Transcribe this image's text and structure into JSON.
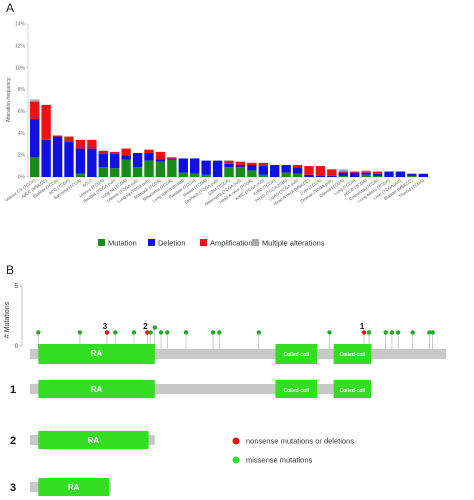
{
  "panel_a_label": "A",
  "panel_b_label": "B",
  "chart_data": [
    {
      "type": "bar",
      "stacked": true,
      "ylabel": "Alteration frequency",
      "ylim": [
        0,
        14
      ],
      "yticks": [
        "0%",
        "2%",
        "4%",
        "6%",
        "8%",
        "10%",
        "12%",
        "14%"
      ],
      "grid": false,
      "legend_position": "bottom",
      "colors": {
        "Mutation": "#1a8a1a",
        "Deletion": "#1010e0",
        "Amplification": "#ee1111",
        "Multiple alterations": "#aaaaaa"
      },
      "categories": [
        "Uterine CS (TCGA)",
        "AdCC (MSKCC)",
        "Bladder (TCGA)",
        "ACC (TCGA)",
        "Sarcoma (TCGA)",
        "SCLC",
        "Uterine (TCGA)",
        "Bladder (TCGA pub)",
        "Lung sq (TCGA)",
        "Uterine (TCGA pub)",
        "Lung sq (TCGA pub)",
        "Stomach (TCGA)",
        "Melanoma (TCGA)",
        "Lung adeno (Broad)",
        "Prostate (TCGA)",
        "Breast (TCGA)",
        "Stomach (TCGA pub)",
        "GBM (TCGA)",
        "Melanoma (TCGA pub)",
        "Head & neck (TCGA)",
        "KIRC (TCGA pub)",
        "KIRC (TCGA)",
        "PRAD (TCGA 2015)",
        "LUAD (TCGA pub)",
        "Head & neck (MSKCC)",
        "Liver (TCGA)",
        "Ovarian (TCGA pub)",
        "Glioma (TCGA)",
        "Lung (TCGA)",
        "pRCC (TCGA)",
        "Colorectal (TCGA)",
        "Lung adeno (TCGA)",
        "Liver (TCGA pub)",
        "Bladder (MSKCC)",
        "Thyroid (TCGA)"
      ],
      "series": [
        {
          "name": "Mutation",
          "values": [
            1.8,
            0,
            0,
            0,
            0.3,
            0,
            0.9,
            0.8,
            1.6,
            0.9,
            1.5,
            1.4,
            1.6,
            0.4,
            0.3,
            0.2,
            0,
            0.9,
            0.9,
            0.6,
            0.2,
            0,
            0.4,
            0.3,
            0,
            0,
            0,
            0.1,
            0,
            0.2,
            0.1,
            0,
            0,
            0.1,
            0
          ]
        },
        {
          "name": "Deletion",
          "values": [
            3.5,
            3.4,
            3.7,
            3.2,
            2.3,
            2.6,
            1.2,
            1.3,
            0.4,
            1.3,
            0.7,
            0.2,
            0.1,
            1.3,
            1.4,
            1.3,
            1.5,
            0.3,
            0.2,
            0.5,
            0.8,
            1.1,
            0.7,
            0.6,
            0.2,
            0.1,
            0.1,
            0.3,
            0.4,
            0.2,
            0.2,
            0.5,
            0.5,
            0.2,
            0.3
          ]
        },
        {
          "name": "Amplification",
          "values": [
            1.6,
            3.2,
            0.1,
            0.5,
            0.8,
            0.8,
            0.3,
            0.2,
            0.6,
            0,
            0.3,
            0.7,
            0.1,
            0,
            0,
            0,
            0,
            0.3,
            0.3,
            0.2,
            0.3,
            0,
            0,
            0.2,
            0.8,
            0.9,
            0.6,
            0.1,
            0.1,
            0.1,
            0.2,
            0,
            0,
            0,
            0
          ]
        },
        {
          "name": "Multiple alterations",
          "values": [
            0.2,
            0,
            0,
            0,
            0,
            0,
            0,
            0,
            0,
            0,
            0,
            0,
            0,
            0,
            0,
            0,
            0,
            0,
            0,
            0,
            0,
            0,
            0,
            0,
            0,
            0,
            0,
            0.2,
            0,
            0.1,
            0,
            0,
            0,
            0,
            0
          ]
        }
      ]
    },
    {
      "type": "lollipop",
      "ylabel": "# Mutations",
      "ylim": [
        0,
        5
      ],
      "yticks": [
        "0",
        "5"
      ],
      "protein_length": 1000,
      "domains_full": [
        {
          "label": "RA",
          "start": 20,
          "end": 300
        },
        {
          "label": "Coiled-coil",
          "start": 590,
          "end": 690
        },
        {
          "label": "Coiled-coil",
          "start": 730,
          "end": 820
        }
      ],
      "mutations": [
        {
          "pos": 20,
          "count": 0.8,
          "type": "missense"
        },
        {
          "pos": 120,
          "count": 0.8,
          "type": "missense"
        },
        {
          "pos": 185,
          "count": 0.8,
          "type": "nonsense",
          "label": "3"
        },
        {
          "pos": 205,
          "count": 0.8,
          "type": "missense"
        },
        {
          "pos": 250,
          "count": 0.8,
          "type": "missense"
        },
        {
          "pos": 282,
          "count": 0.8,
          "type": "nonsense",
          "label": "2"
        },
        {
          "pos": 290,
          "count": 0.8,
          "type": "missense"
        },
        {
          "pos": 300,
          "count": 1.2,
          "type": "missense"
        },
        {
          "pos": 315,
          "count": 0.8,
          "type": "missense"
        },
        {
          "pos": 330,
          "count": 0.8,
          "type": "missense"
        },
        {
          "pos": 375,
          "count": 0.8,
          "type": "missense"
        },
        {
          "pos": 440,
          "count": 0.8,
          "type": "missense"
        },
        {
          "pos": 455,
          "count": 0.8,
          "type": "missense"
        },
        {
          "pos": 550,
          "count": 0.8,
          "type": "missense"
        },
        {
          "pos": 720,
          "count": 0.8,
          "type": "missense"
        },
        {
          "pos": 803,
          "count": 0.8,
          "type": "nonsense",
          "label": "1"
        },
        {
          "pos": 815,
          "count": 0.8,
          "type": "missense"
        },
        {
          "pos": 855,
          "count": 0.8,
          "type": "missense"
        },
        {
          "pos": 870,
          "count": 0.8,
          "type": "missense"
        },
        {
          "pos": 885,
          "count": 0.8,
          "type": "missense"
        },
        {
          "pos": 920,
          "count": 0.8,
          "type": "missense"
        },
        {
          "pos": 960,
          "count": 0.8,
          "type": "missense"
        },
        {
          "pos": 968,
          "count": 0.8,
          "type": "missense"
        }
      ],
      "truncated_rows": [
        {
          "label": "1",
          "length": 820,
          "domains": [
            {
              "label": "RA",
              "start": 20,
              "end": 300
            },
            {
              "label": "Coiled-coil",
              "start": 590,
              "end": 690
            },
            {
              "label": "Coiled-coil",
              "start": 730,
              "end": 820
            }
          ]
        },
        {
          "label": "2",
          "length": 300,
          "domains": [
            {
              "label": "RA",
              "start": 20,
              "end": 285
            }
          ]
        },
        {
          "label": "3",
          "length": 195,
          "domains": [
            {
              "label": "RA",
              "start": 20,
              "end": 190
            }
          ]
        }
      ],
      "legend": [
        {
          "label": "nonsense mutations or deletions",
          "color": "#ee1111"
        },
        {
          "label": "missense mutations",
          "color": "#33dd33"
        }
      ]
    }
  ]
}
